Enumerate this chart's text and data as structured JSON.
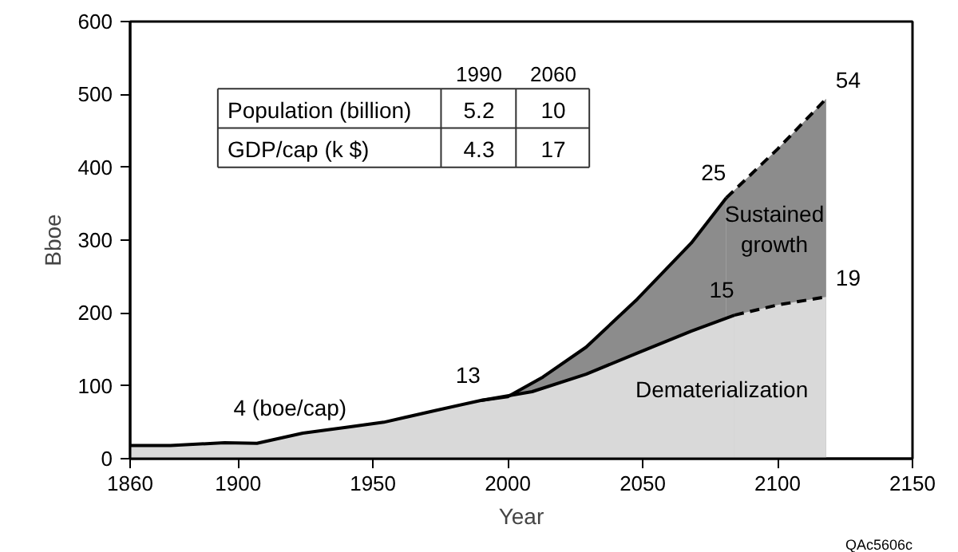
{
  "chart_data": {
    "type": "area",
    "xlabel": "Year",
    "ylabel": "Bboe",
    "xlim": [
      1860,
      2150
    ],
    "ylim": [
      0,
      600
    ],
    "xticks": [
      1860,
      1900,
      1950,
      2000,
      2050,
      2100,
      2150
    ],
    "yticks": [
      0,
      100,
      200,
      300,
      400,
      500,
      600
    ],
    "grid": false,
    "series": [
      {
        "name": "Sustained growth",
        "color": "#8c8c8c",
        "line_style": "solid",
        "x": [
          1990,
          2000,
          2013,
          2029,
          2048,
          2068,
          2081
        ],
        "values": [
          80,
          85,
          112,
          153,
          219,
          296,
          358
        ]
      },
      {
        "color": "#8c8c8c",
        "line_style": "dashed",
        "x": [
          2081,
          2100,
          2118
        ],
        "values": [
          358,
          425,
          494
        ]
      },
      {
        "name": "Dematerialization",
        "color": "#d9d9d9",
        "line_style": "solid",
        "x": [
          1860,
          1875,
          1895,
          1907,
          1924,
          1940,
          1954,
          1973,
          1990,
          2009,
          2029,
          2048,
          2068,
          2084
        ],
        "values": [
          18,
          18,
          22,
          21,
          35,
          43,
          50,
          66,
          80,
          92,
          116,
          145,
          175,
          197
        ]
      },
      {
        "color": "#d9d9d9",
        "line_style": "dashed",
        "x": [
          2084,
          2100,
          2118
        ],
        "values": [
          197,
          211,
          222
        ]
      }
    ],
    "annotations": [
      {
        "text": "4 (boe/cap)",
        "x": 1924,
        "y": 35
      },
      {
        "text": "13",
        "x": 1990,
        "y": 80
      },
      {
        "text": "25",
        "x": 2081,
        "y": 358
      },
      {
        "text": "15",
        "x": 2084,
        "y": 197
      },
      {
        "text": "54",
        "x": 2118,
        "y": 494
      },
      {
        "text": "19",
        "x": 2118,
        "y": 222
      },
      "1990",
      "2060",
      "Population (billion)",
      "5.2",
      "10",
      "GDP/cap (k $)",
      "4.3",
      "17",
      "QAc5606c"
    ]
  }
}
